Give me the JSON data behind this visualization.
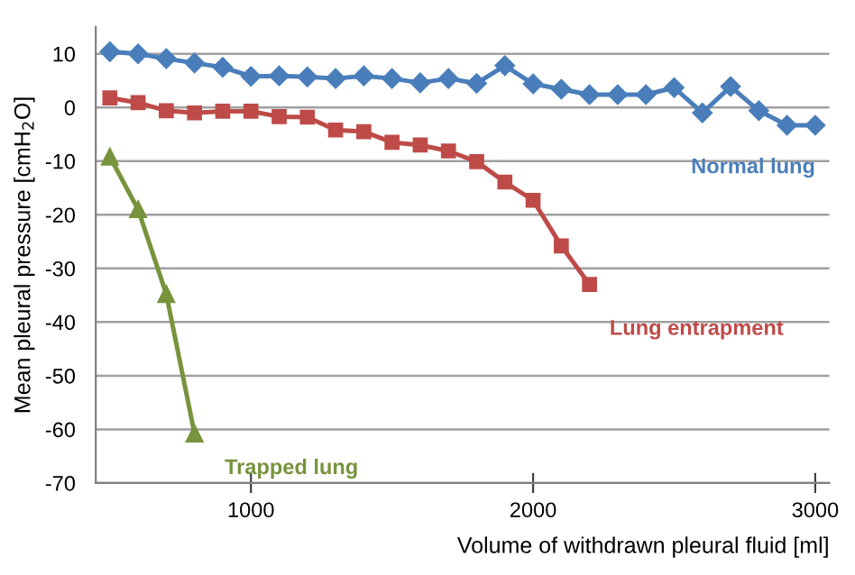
{
  "chart_data": {
    "type": "line",
    "xlabel": "Volume of withdrawn pleural fluid [ml]",
    "ylabel": "Mean pleural pressure [cmH$_{2}$O]",
    "xlim": [
      450,
      3050
    ],
    "xticks": [
      1000,
      2000,
      3000
    ],
    "ylim": [
      -70,
      15
    ],
    "yticks": [
      -70,
      -60,
      -50,
      -40,
      -30,
      -20,
      -10,
      0,
      10
    ],
    "grid": "y",
    "legend": false,
    "series": [
      {
        "name": "Normal lung",
        "color": "#4a7ebb",
        "marker": "diamond",
        "x": [
          500,
          600,
          700,
          800,
          900,
          1000,
          1100,
          1200,
          1300,
          1400,
          1500,
          1600,
          1700,
          1800,
          1900,
          2000,
          2100,
          2200,
          2300,
          2400,
          2500,
          2600,
          2700,
          2800,
          2900,
          3000
        ],
        "values": [
          10.4,
          10.0,
          9.1,
          8.3,
          7.5,
          5.8,
          5.9,
          5.7,
          5.4,
          5.9,
          5.4,
          4.6,
          5.4,
          4.5,
          7.8,
          4.4,
          3.4,
          2.4,
          2.4,
          2.4,
          3.7,
          -1.0,
          3.9,
          -0.6,
          -3.3,
          -3.3
        ]
      },
      {
        "name": "Lung entrapment",
        "color": "#be4b48",
        "marker": "square",
        "x": [
          500,
          600,
          700,
          800,
          900,
          1000,
          1100,
          1200,
          1300,
          1400,
          1500,
          1600,
          1700,
          1800,
          1900,
          2000,
          2100,
          2200
        ],
        "values": [
          1.8,
          0.9,
          -0.6,
          -1.0,
          -0.7,
          -0.7,
          -1.7,
          -1.8,
          -4.2,
          -4.5,
          -6.5,
          -7.0,
          -8.1,
          -10.1,
          -13.9,
          -17.3,
          -25.8,
          -33.0
        ]
      },
      {
        "name": "Trapped lung",
        "color": "#77933c",
        "marker": "triangle",
        "x": [
          500,
          600,
          700,
          800
        ],
        "values": [
          -9.2,
          -19.0,
          -34.8,
          -60.8
        ]
      }
    ]
  }
}
